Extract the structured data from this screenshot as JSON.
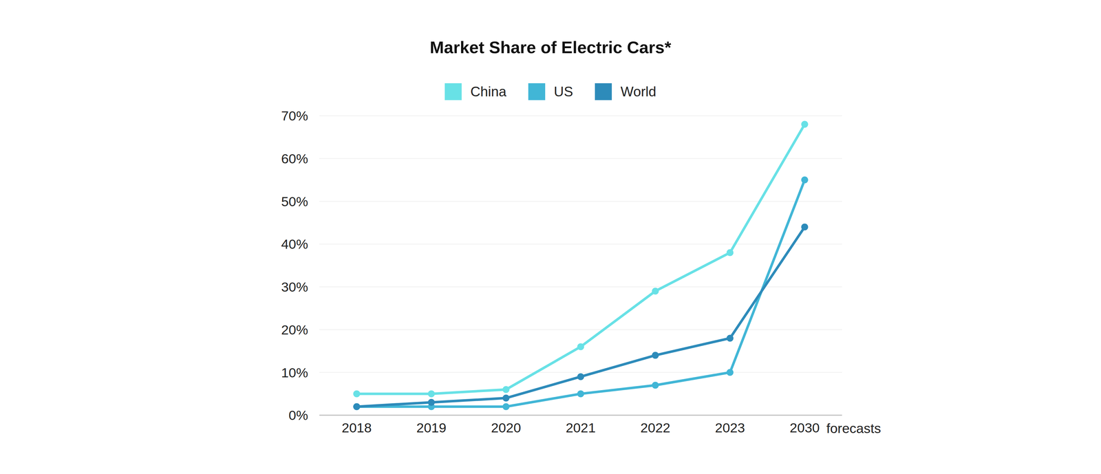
{
  "chart_data": {
    "type": "line",
    "title": "Market Share of Electric Cars*",
    "xlabel": "forecasts",
    "categories": [
      "2018",
      "2019",
      "2020",
      "2021",
      "2022",
      "2023",
      "2030"
    ],
    "series": [
      {
        "name": "China",
        "color": "#68e1e6",
        "values": [
          5,
          5,
          6,
          16,
          29,
          38,
          68
        ]
      },
      {
        "name": "US",
        "color": "#41b6d6",
        "values": [
          2,
          2,
          2,
          5,
          7,
          10,
          55
        ]
      },
      {
        "name": "World",
        "color": "#2d8bba",
        "values": [
          2,
          3,
          4,
          9,
          14,
          18,
          44
        ]
      }
    ],
    "ylim": [
      0,
      70
    ],
    "yticks": [
      {
        "value": 0,
        "label": "0%"
      },
      {
        "value": 10,
        "label": "10%"
      },
      {
        "value": 20,
        "label": "20%"
      },
      {
        "value": 30,
        "label": "30%"
      },
      {
        "value": 40,
        "label": "40%"
      },
      {
        "value": 50,
        "label": "50%"
      },
      {
        "value": 60,
        "label": "60%"
      },
      {
        "value": 70,
        "label": "70%"
      }
    ],
    "grid": true,
    "legend": "top",
    "marker": "circle"
  }
}
